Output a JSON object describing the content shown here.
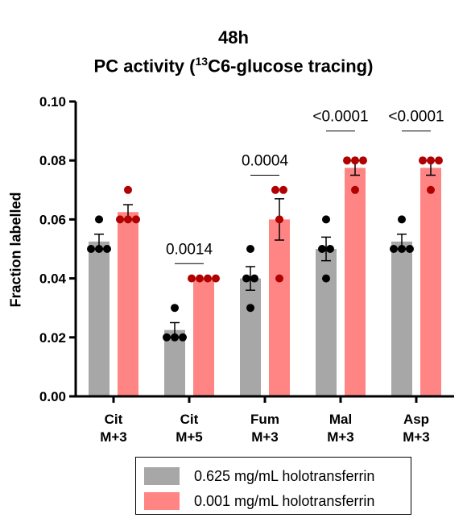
{
  "title": {
    "line1": "48h",
    "line2_prefix": "PC activity (",
    "line2_sup": "13",
    "line2_suffix": "C6-glucose tracing)"
  },
  "colors": {
    "series1": "#a7a7a7",
    "series2": "#ff8585",
    "dots1": "#000000",
    "dots2": "#b00000"
  },
  "chart_data": {
    "type": "bar",
    "ylabel": "Fraction labelled",
    "xlabel": "",
    "ylim": [
      0,
      0.1
    ],
    "yticks": [
      "0.00",
      "0.02",
      "0.04",
      "0.06",
      "0.08",
      "0.10"
    ],
    "categories": [
      {
        "line1": "Cit",
        "line2": "M+3"
      },
      {
        "line1": "Cit",
        "line2": "M+5"
      },
      {
        "line1": "Fum",
        "line2": "M+3"
      },
      {
        "line1": "Mal",
        "line2": "M+3"
      },
      {
        "line1": "Asp",
        "line2": "M+3"
      }
    ],
    "series": [
      {
        "name": "0.625 mg/mL holotransferrin",
        "values": [
          0.0525,
          0.0225,
          0.04,
          0.05,
          0.0525
        ],
        "sem": [
          0.0025,
          0.0025,
          0.004,
          0.004,
          0.0025
        ],
        "points": [
          [
            0.05,
            0.05,
            0.05,
            0.06
          ],
          [
            0.02,
            0.02,
            0.02,
            0.03
          ],
          [
            0.03,
            0.04,
            0.04,
            0.05
          ],
          [
            0.04,
            0.05,
            0.05,
            0.06
          ],
          [
            0.05,
            0.05,
            0.05,
            0.06
          ]
        ]
      },
      {
        "name": "0.001 mg/mL holotransferrin",
        "values": [
          0.0625,
          0.04,
          0.06,
          0.0775,
          0.0775
        ],
        "sem": [
          0.0025,
          0.0,
          0.007,
          0.0025,
          0.0025
        ],
        "points": [
          [
            0.06,
            0.06,
            0.06,
            0.07
          ],
          [
            0.04,
            0.04,
            0.04,
            0.04
          ],
          [
            0.04,
            0.06,
            0.07,
            0.07
          ],
          [
            0.07,
            0.08,
            0.08,
            0.08
          ],
          [
            0.07,
            0.08,
            0.08,
            0.08
          ]
        ]
      }
    ],
    "annotations": [
      {
        "category": 1,
        "text": "0.0014",
        "y": 0.045
      },
      {
        "category": 2,
        "text": "0.0004",
        "y": 0.075
      },
      {
        "category": 3,
        "text": "<0.0001",
        "y": 0.09
      },
      {
        "category": 4,
        "text": "<0.0001",
        "y": 0.09
      }
    ]
  }
}
